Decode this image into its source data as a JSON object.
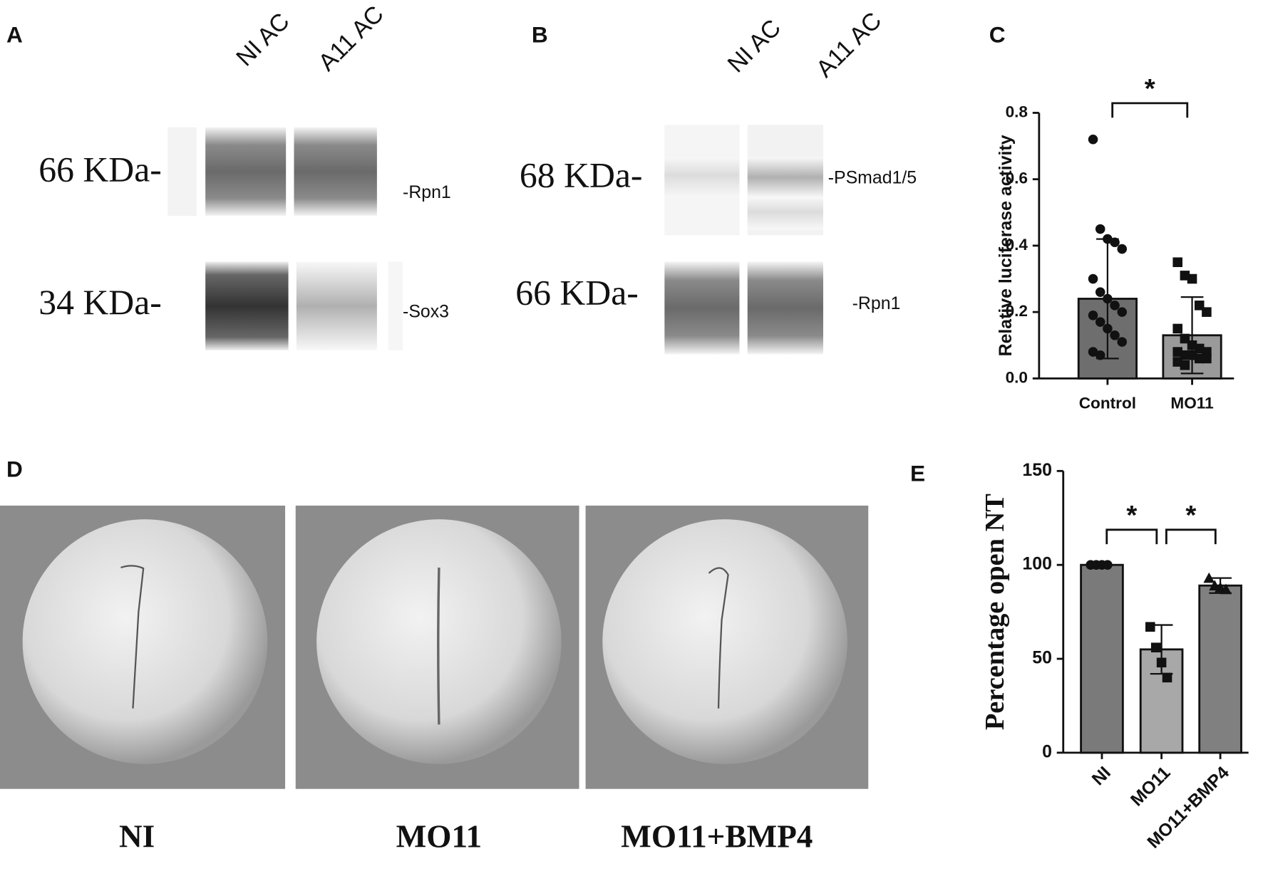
{
  "panels": {
    "a": {
      "letter": "A",
      "lanes": [
        "NI AC",
        "A11 AC"
      ],
      "markers": [
        "66 KDa-",
        "34 KDa-"
      ],
      "bands": [
        "-Rpn1",
        "-Sox3"
      ]
    },
    "b": {
      "letter": "B",
      "lanes": [
        "NI AC",
        "A11 AC"
      ],
      "markers": [
        "68 KDa-",
        "66 KDa-"
      ],
      "bands": [
        "-PSmad1/5",
        "-Rpn1"
      ]
    },
    "c": {
      "letter": "C"
    },
    "d": {
      "letter": "D",
      "captions": [
        "NI",
        "MO11",
        "MO11+BMP4"
      ]
    },
    "e": {
      "letter": "E"
    }
  },
  "chart_data": [
    {
      "type": "bar",
      "y_label": "Relative luciferase activity",
      "categories": [
        "Control",
        "MO11"
      ],
      "values": [
        0.24,
        0.13
      ],
      "errors": [
        0.18,
        0.115
      ],
      "colors": [
        "#6e6e6e",
        "#9a9a9a"
      ],
      "markers": [
        "circle",
        "square"
      ],
      "points": [
        [
          0.72,
          0.45,
          0.42,
          0.41,
          0.39,
          0.3,
          0.26,
          0.24,
          0.22,
          0.2,
          0.19,
          0.17,
          0.15,
          0.13,
          0.11,
          0.08,
          0.07
        ],
        [
          0.35,
          0.31,
          0.3,
          0.22,
          0.2,
          0.15,
          0.12,
          0.1,
          0.09,
          0.08,
          0.08,
          0.07,
          0.07,
          0.06,
          0.06,
          0.05,
          0.04
        ]
      ],
      "ylim": [
        0,
        0.8
      ],
      "yticks": [
        {
          "value": 0,
          "label": "0.0"
        },
        0.2,
        0.4,
        0.6,
        0.8
      ],
      "annotations": [
        {
          "text": "*",
          "from": "Control",
          "to": "MO11"
        }
      ]
    },
    {
      "type": "bar",
      "y_label": "Percentage open NT",
      "categories": [
        "NI",
        "MO11",
        "MO11+BMP4"
      ],
      "values": [
        100,
        55,
        89
      ],
      "errors": [
        0,
        13,
        4
      ],
      "colors": [
        "#7a7a7a",
        "#a8a8a8",
        "#808080"
      ],
      "markers": [
        "circle",
        "square",
        "triangle"
      ],
      "points": [
        [
          100,
          100,
          100,
          100
        ],
        [
          67,
          56,
          48,
          40
        ],
        [
          93,
          89,
          88,
          87
        ]
      ],
      "ylim": [
        0,
        150
      ],
      "yticks": [
        0,
        50,
        100,
        150
      ],
      "annotations": [
        {
          "text": "*",
          "from": "NI",
          "to": "MO11"
        },
        {
          "text": "*",
          "from": "MO11",
          "to": "MO11+BMP4"
        }
      ]
    }
  ]
}
